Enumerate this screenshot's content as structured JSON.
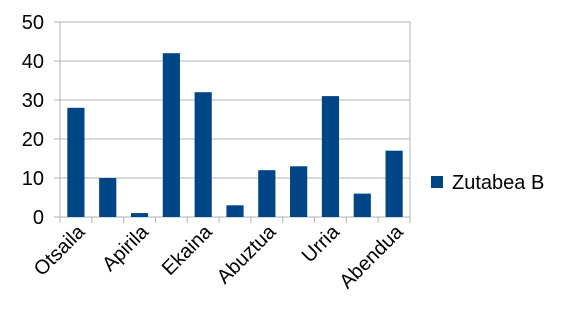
{
  "chart_data": {
    "type": "bar",
    "categories": [
      "Otsaila",
      null,
      "Apirila",
      null,
      "Ekaina",
      null,
      "Abuztua",
      null,
      "Urria",
      null,
      "Abendua"
    ],
    "series": [
      {
        "name": "Zutabea B",
        "color": "#004586",
        "values": [
          28,
          10,
          1,
          42,
          32,
          3,
          12,
          13,
          31,
          6,
          17
        ]
      }
    ],
    "ylim": [
      0,
      50
    ],
    "yticks": [
      0,
      10,
      20,
      30,
      40,
      50
    ],
    "grid": true,
    "legend": "right"
  }
}
